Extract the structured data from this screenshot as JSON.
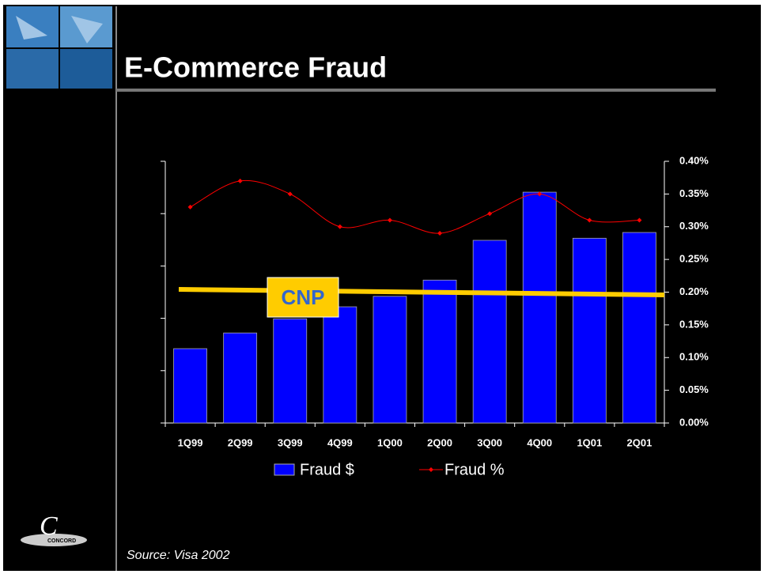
{
  "chart_data": {
    "type": "bar",
    "title": "E-Commerce Fraud",
    "source": "Source: Visa 2002",
    "logo_text": "CONCORD",
    "annotation": "CNP",
    "categories": [
      "1Q99",
      "2Q99",
      "3Q99",
      "4Q99",
      "1Q00",
      "2Q00",
      "3Q00",
      "4Q00",
      "1Q01",
      "2Q01"
    ],
    "series": [
      {
        "name": "Fraud $",
        "color": "#0000ff",
        "values": [
          1.42,
          1.72,
          1.99,
          2.22,
          2.42,
          2.73,
          3.49,
          4.41,
          3.53,
          3.64
        ]
      },
      {
        "name": "Fraud %",
        "color": "#ff0000",
        "axis": "y2",
        "type": "line",
        "values": [
          0.33,
          0.37,
          0.35,
          0.3,
          0.31,
          0.29,
          0.32,
          0.35,
          0.31,
          0.31
        ]
      }
    ],
    "ylim": [
      0,
      5
    ],
    "yticks": [
      0,
      1,
      2,
      3,
      4,
      5
    ],
    "y2lim": [
      0,
      0.4
    ],
    "y2ticks": [
      {
        "value": 0,
        "label": "0.00%"
      },
      {
        "value": 0.05,
        "label": "0.05%"
      },
      {
        "value": 0.1,
        "label": "0.10%"
      },
      {
        "value": 0.15,
        "label": "0.15%"
      },
      {
        "value": 0.2,
        "label": "0.20%"
      },
      {
        "value": 0.25,
        "label": "0.25%"
      },
      {
        "value": 0.3,
        "label": "0.30%"
      },
      {
        "value": 0.35,
        "label": "0.35%"
      },
      {
        "value": 0.4,
        "label": "0.40%"
      }
    ]
  }
}
